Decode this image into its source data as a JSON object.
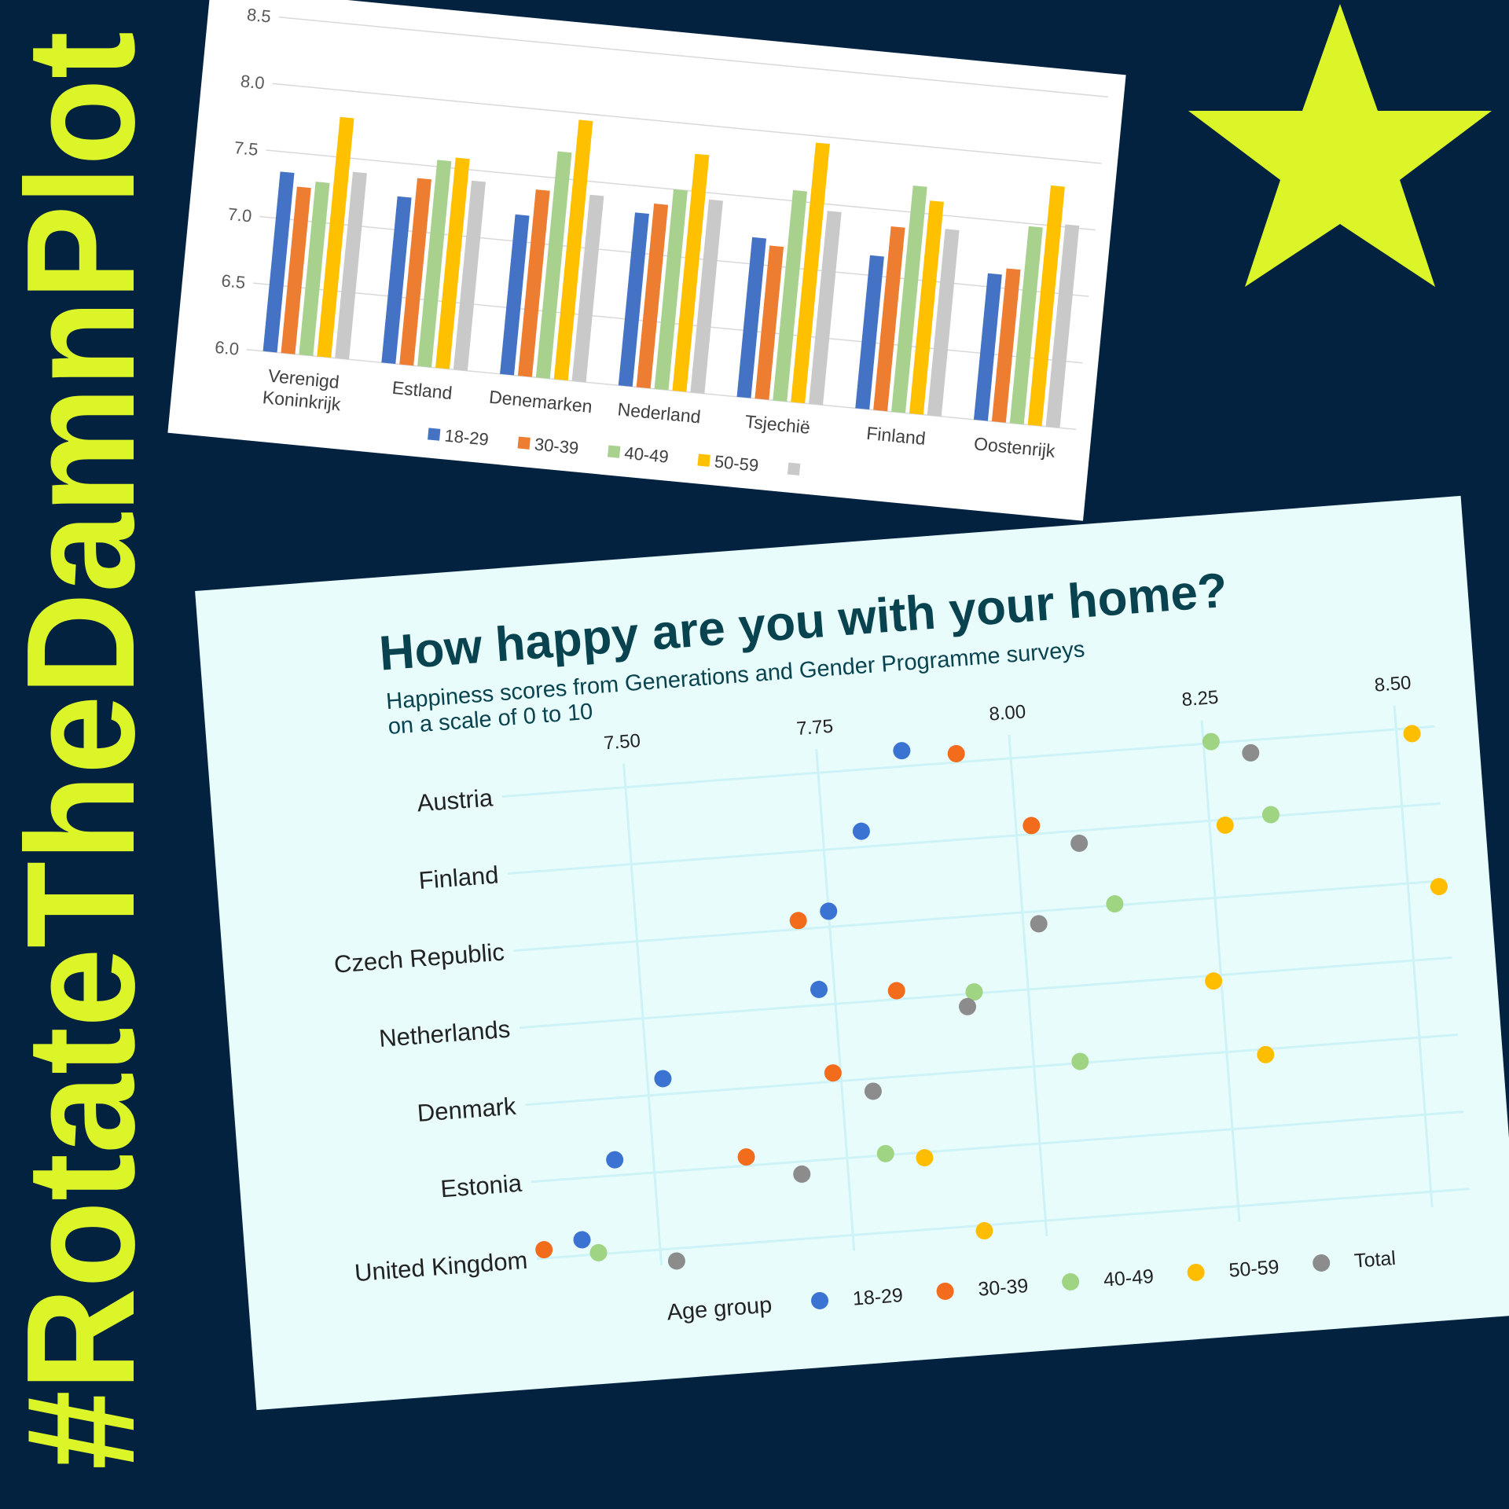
{
  "hashtag": "#RotateTheDamnPlot",
  "colors": {
    "background": "#032240",
    "accent": "#dcf529",
    "blue": "#3a73d1",
    "orange": "#f26c1b",
    "green": "#9fd483",
    "yellow": "#ffbd00",
    "gray": "#8c8c8c",
    "excel_blue": "#4472c4",
    "excel_orange": "#ed7d31",
    "excel_green": "#a9d18e",
    "excel_yellow": "#ffc000",
    "excel_gray": "#c9c9c9"
  },
  "star_icon": "star-icon",
  "chart_data": [
    {
      "type": "bar",
      "title": "",
      "xlabel": "",
      "ylabel": "",
      "ylim": [
        6.0,
        8.5
      ],
      "yticks": [
        "6.0",
        "6.5",
        "7.0",
        "7.5",
        "8.0",
        "8.5"
      ],
      "grid": true,
      "legend_placement": "bottom",
      "categories": [
        "Verenigd Koninkrijk",
        "Estland",
        "Denemarken",
        "Nederland",
        "Tsjechië",
        "Finland",
        "Oostenrijk"
      ],
      "series": [
        {
          "name": "18-29",
          "values": [
            7.35,
            7.25,
            7.2,
            7.3,
            7.2,
            7.15,
            7.1
          ]
        },
        {
          "name": "30-39",
          "values": [
            7.25,
            7.4,
            7.4,
            7.38,
            7.15,
            7.38,
            7.15
          ]
        },
        {
          "name": "40-49",
          "values": [
            7.3,
            7.55,
            7.7,
            7.5,
            7.58,
            7.7,
            7.48
          ]
        },
        {
          "name": "50-59",
          "values": [
            7.8,
            7.58,
            7.95,
            7.78,
            7.95,
            7.6,
            7.8
          ]
        },
        {
          "name": "",
          "values": [
            7.4,
            7.42,
            7.4,
            7.45,
            7.45,
            7.4,
            7.52
          ]
        }
      ]
    },
    {
      "type": "scatter",
      "title": "How happy are you with your home?",
      "subtitle_line1": "Happiness scores from Generations and Gender Programme surveys",
      "subtitle_line2": "on a scale of 0 to 10",
      "xlim": [
        7.35,
        8.55
      ],
      "xticks": [
        "7.50",
        "7.75",
        "8.00",
        "8.25",
        "8.50"
      ],
      "grid": true,
      "legend_title": "Age group",
      "legend_placement": "bottom",
      "categories": [
        "Austria",
        "Finland",
        "Czech Republic",
        "Netherlands",
        "Denmark",
        "Estonia",
        "United Kingdom"
      ],
      "series": [
        {
          "name": "18-29",
          "values": [
            7.86,
            7.8,
            7.75,
            7.73,
            7.52,
            7.45,
            7.4
          ]
        },
        {
          "name": "30-39",
          "values": [
            7.93,
            8.02,
            7.71,
            7.83,
            7.74,
            7.62,
            7.35
          ]
        },
        {
          "name": "40-49",
          "values": [
            8.26,
            8.33,
            8.12,
            7.93,
            8.06,
            7.8,
            7.42
          ]
        },
        {
          "name": "50-59",
          "values": [
            8.52,
            8.27,
            8.54,
            8.24,
            8.3,
            7.85,
            7.92
          ]
        },
        {
          "name": "Total",
          "values": [
            8.31,
            8.08,
            8.02,
            7.92,
            7.79,
            7.69,
            7.52
          ]
        }
      ]
    }
  ]
}
